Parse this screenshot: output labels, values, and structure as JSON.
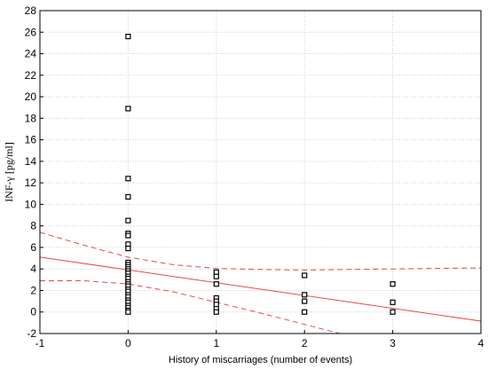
{
  "chart_data": {
    "type": "scatter",
    "xlabel": "History of miscarriages (number of events)",
    "ylabel": "INF-γ [pg/ml]",
    "xlim": [
      -1,
      4
    ],
    "ylim": [
      -2,
      28
    ],
    "x_ticks": [
      -1,
      0,
      1,
      2,
      3,
      4
    ],
    "y_ticks": [
      -2,
      0,
      2,
      4,
      6,
      8,
      10,
      12,
      14,
      16,
      18,
      20,
      22,
      24,
      26,
      28
    ],
    "grid": true,
    "points": [
      {
        "x": 0,
        "y": 25.6
      },
      {
        "x": 0,
        "y": 18.9
      },
      {
        "x": 0,
        "y": 12.4
      },
      {
        "x": 0,
        "y": 10.7
      },
      {
        "x": 0,
        "y": 8.5
      },
      {
        "x": 0,
        "y": 7.3
      },
      {
        "x": 0,
        "y": 7.1
      },
      {
        "x": 0,
        "y": 6.3
      },
      {
        "x": 0,
        "y": 5.9
      },
      {
        "x": 0,
        "y": 4.6
      },
      {
        "x": 0,
        "y": 4.4
      },
      {
        "x": 0,
        "y": 4.2
      },
      {
        "x": 0,
        "y": 4.0
      },
      {
        "x": 0,
        "y": 3.8
      },
      {
        "x": 0,
        "y": 3.6
      },
      {
        "x": 0,
        "y": 3.3
      },
      {
        "x": 0,
        "y": 3.1
      },
      {
        "x": 0,
        "y": 2.8
      },
      {
        "x": 0,
        "y": 2.6
      },
      {
        "x": 0,
        "y": 2.4
      },
      {
        "x": 0,
        "y": 2.1
      },
      {
        "x": 0,
        "y": 1.9
      },
      {
        "x": 0,
        "y": 1.6
      },
      {
        "x": 0,
        "y": 1.4
      },
      {
        "x": 0,
        "y": 1.1
      },
      {
        "x": 0,
        "y": 0.9
      },
      {
        "x": 0,
        "y": 0.6
      },
      {
        "x": 0,
        "y": 0.4
      },
      {
        "x": 0,
        "y": 0.15
      },
      {
        "x": 0,
        "y": 0.0
      },
      {
        "x": 1,
        "y": 3.7
      },
      {
        "x": 1,
        "y": 3.3
      },
      {
        "x": 1,
        "y": 2.6
      },
      {
        "x": 1,
        "y": 1.3
      },
      {
        "x": 1,
        "y": 1.0
      },
      {
        "x": 1,
        "y": 0.7
      },
      {
        "x": 1,
        "y": 0.3
      },
      {
        "x": 1,
        "y": 0.0
      },
      {
        "x": 2,
        "y": 3.4
      },
      {
        "x": 2,
        "y": 1.6
      },
      {
        "x": 2,
        "y": 1.0
      },
      {
        "x": 2,
        "y": 0.0
      },
      {
        "x": 3,
        "y": 2.6
      },
      {
        "x": 3,
        "y": 0.9
      },
      {
        "x": 3,
        "y": 0.0
      }
    ],
    "regression_line": [
      {
        "x": -1,
        "y": 5.1
      },
      {
        "x": 4,
        "y": -0.85
      }
    ],
    "confidence_upper": [
      {
        "x": -1,
        "y": 7.4
      },
      {
        "x": -0.5,
        "y": 6.2
      },
      {
        "x": 0,
        "y": 5.1
      },
      {
        "x": 0.5,
        "y": 4.4
      },
      {
        "x": 1,
        "y": 4.05
      },
      {
        "x": 1.5,
        "y": 3.95
      },
      {
        "x": 2,
        "y": 3.9
      },
      {
        "x": 2.5,
        "y": 3.95
      },
      {
        "x": 3,
        "y": 4.0
      },
      {
        "x": 3.5,
        "y": 4.05
      },
      {
        "x": 4,
        "y": 4.1
      }
    ],
    "confidence_lower": [
      {
        "x": -1,
        "y": 2.9
      },
      {
        "x": -0.5,
        "y": 2.9
      },
      {
        "x": 0,
        "y": 2.6
      },
      {
        "x": 0.5,
        "y": 1.9
      },
      {
        "x": 1,
        "y": 0.9
      },
      {
        "x": 1.5,
        "y": -0.1
      },
      {
        "x": 2,
        "y": -1.15
      },
      {
        "x": 2.4,
        "y": -2.0
      }
    ],
    "colors": {
      "regression": "#e8484a",
      "marker": "#000000",
      "grid": "#d0d0d0"
    }
  }
}
